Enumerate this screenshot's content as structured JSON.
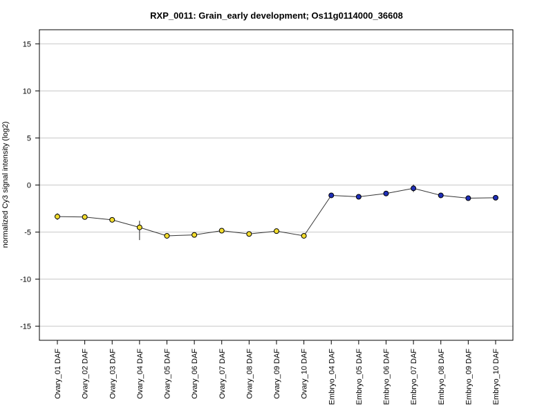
{
  "chart_data": {
    "type": "line",
    "title": "RXP_0011: Grain_early development; Os11g0114000_36608",
    "xlabel": "",
    "ylabel": "normalized Cy3 signal intensity (log2)",
    "ylim": [
      -16.5,
      16.5
    ],
    "yticks": [
      -15,
      -10,
      -5,
      0,
      5,
      10,
      15
    ],
    "grid": true,
    "categories": [
      "Ovary_01 DAF",
      "Ovary_02 DAF",
      "Ovary_03 DAF",
      "Ovary_04 DAF",
      "Ovary_05 DAF",
      "Ovary_06 DAF",
      "Ovary_07 DAF",
      "Ovary_08 DAF",
      "Ovary_09 DAF",
      "Ovary_10 DAF",
      "Embryo_04 DAF",
      "Embryo_05 DAF",
      "Embryo_06 DAF",
      "Embryo_07 DAF",
      "Embryo_08 DAF",
      "Embryo_09 DAF",
      "Embryo_10 DAF"
    ],
    "values": [
      -3.35,
      -3.4,
      -3.7,
      -4.5,
      -5.4,
      -5.3,
      -4.85,
      -5.2,
      -4.9,
      -5.4,
      -1.1,
      -1.25,
      -0.9,
      -0.35,
      -1.1,
      -1.4,
      -1.35
    ],
    "error_low": [
      -3.7,
      -3.5,
      -3.8,
      -5.85,
      -5.5,
      -5.4,
      -4.95,
      -5.3,
      -5.0,
      -5.5,
      -1.2,
      -1.35,
      -1.0,
      -0.75,
      -1.2,
      -1.5,
      -1.45
    ],
    "error_high": [
      -3.0,
      -3.3,
      -3.6,
      -3.8,
      -5.3,
      -5.2,
      -4.75,
      -5.1,
      -4.8,
      -5.3,
      -1.0,
      -1.15,
      -0.8,
      0.05,
      -1.0,
      -1.3,
      -1.25
    ],
    "marker_colors": [
      "#f2dc2e",
      "#f2dc2e",
      "#f2dc2e",
      "#f2dc2e",
      "#f2dc2e",
      "#f2dc2e",
      "#f2dc2e",
      "#f2dc2e",
      "#f2dc2e",
      "#f2dc2e",
      "#1f2fb8",
      "#1f2fb8",
      "#1f2fb8",
      "#1f2fb8",
      "#1f2fb8",
      "#1f2fb8",
      "#1f2fb8"
    ],
    "line_color": "#333333",
    "grid_color": "#c8c8c8"
  }
}
